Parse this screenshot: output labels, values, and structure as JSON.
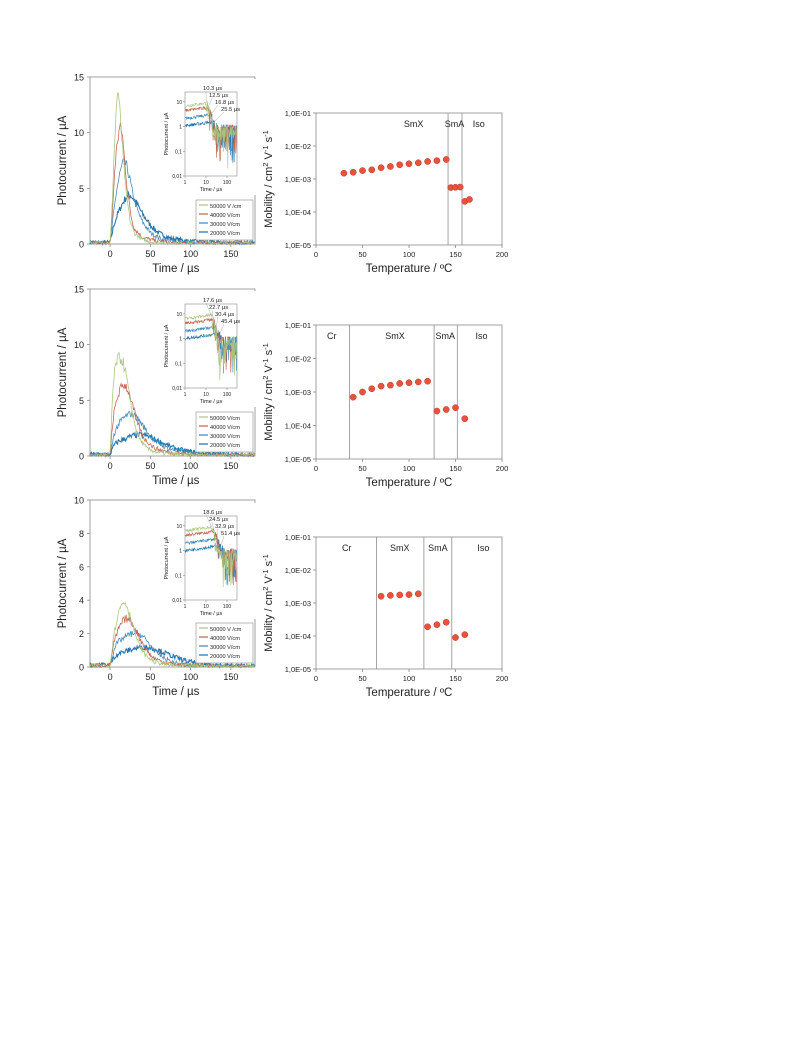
{
  "colors": {
    "s50000": "#a8c47a",
    "s40000": "#c2604a",
    "s30000": "#3c86b8",
    "s20000": "#1a6fa8",
    "marker": "#e8513c",
    "marker_edge": "#c0392b",
    "axis": "#8a8a8a",
    "phase_line": "#9a9a9a"
  },
  "chart_data": [
    {
      "id": "a-transient",
      "type": "line",
      "title": "",
      "xlabel": "Time / µs",
      "ylabel": "Photocurrent / µA",
      "xlim": [
        -25,
        180
      ],
      "ylim": [
        0,
        15
      ],
      "xticks": [
        "0",
        "50",
        "100",
        "150"
      ],
      "yticks": [
        "0",
        "5",
        "10",
        "15"
      ],
      "legend_position": "bottom-right",
      "series": [
        {
          "name": "50000 V /cm",
          "color_key": "s50000",
          "x": [
            -25,
            0,
            3,
            6,
            8,
            10,
            12,
            16,
            20,
            25,
            30,
            40,
            50,
            70,
            180
          ],
          "y": [
            0.1,
            0.1,
            4,
            10,
            12.8,
            13.8,
            12,
            8,
            4.5,
            2,
            1,
            0.4,
            0.2,
            0.1,
            0.1
          ]
        },
        {
          "name": "40000 V/cm",
          "color_key": "s40000",
          "x": [
            -25,
            0,
            3,
            6,
            9,
            12,
            15,
            18,
            22,
            26,
            30,
            40,
            55,
            80,
            180
          ],
          "y": [
            0.1,
            0.1,
            3,
            7,
            9.2,
            10.5,
            10,
            7.5,
            4.5,
            2.5,
            1.4,
            0.6,
            0.3,
            0.1,
            0.1
          ]
        },
        {
          "name": "30000 V/cm",
          "color_key": "s30000",
          "x": [
            -25,
            0,
            4,
            8,
            12,
            16,
            20,
            24,
            28,
            34,
            40,
            50,
            65,
            90,
            180
          ],
          "y": [
            0.1,
            0.1,
            2.5,
            4.8,
            6.3,
            7.3,
            7.1,
            6,
            4.5,
            3,
            2,
            1,
            0.4,
            0.15,
            0.1
          ]
        },
        {
          "name": "20000 V/cm",
          "color_key": "s20000",
          "x": [
            -25,
            0,
            5,
            10,
            15,
            20,
            25,
            30,
            35,
            40,
            50,
            60,
            75,
            100,
            130,
            180
          ],
          "y": [
            0.15,
            0.15,
            1.8,
            2.8,
            3.6,
            4.2,
            4.4,
            4,
            3.4,
            2.7,
            1.7,
            1,
            0.5,
            0.25,
            0.15,
            0.1
          ]
        }
      ],
      "inset": {
        "xlabel": "Time / µs",
        "ylabel": "Photocurrent / µA",
        "xticks": [
          "1",
          "10",
          "100"
        ],
        "yticks": [
          "0,01",
          "0,1",
          "1",
          "10"
        ],
        "xlim": [
          1,
          300
        ],
        "ylim": [
          0.01,
          25
        ],
        "annotations": [
          "10.3 µs",
          "12.5 µs",
          "16.8 µs",
          "25.5 µs"
        ],
        "transit_times": [
          10.3,
          12.5,
          16.8,
          25.5
        ]
      }
    },
    {
      "id": "a-mobility",
      "type": "scatter",
      "title": "",
      "xlabel": "Temperature / ºC",
      "ylabel_parts": [
        "Mobility / cm",
        "2",
        " V",
        "-1",
        " s",
        "-1"
      ],
      "xlim": [
        0,
        200
      ],
      "ylim": [
        1e-05,
        0.1
      ],
      "log_y": true,
      "xticks": [
        "0",
        "50",
        "100",
        "150",
        "200"
      ],
      "yticks": [
        "1,0E-05",
        "1,0E-04",
        "1,0E-03",
        "1,0E-02",
        "1,0E-01"
      ],
      "phase_boundaries": [
        142,
        157
      ],
      "phases": [
        {
          "label": "SmX",
          "x": 105
        },
        {
          "label": "SmA",
          "x": 149
        },
        {
          "label": "Iso",
          "x": 175
        }
      ],
      "points": {
        "x": [
          30,
          40,
          50,
          60,
          70,
          80,
          90,
          100,
          110,
          120,
          130,
          140,
          145,
          150,
          155,
          160,
          165
        ],
        "y": [
          0.0015,
          0.0016,
          0.0018,
          0.0019,
          0.0022,
          0.0024,
          0.0027,
          0.0029,
          0.0031,
          0.0034,
          0.0036,
          0.0039,
          0.00055,
          0.00056,
          0.00057,
          0.00021,
          0.00024
        ]
      }
    },
    {
      "id": "b-transient",
      "type": "line",
      "title": "",
      "xlabel": "Time / µs",
      "ylabel": "Photocurrent / µA",
      "xlim": [
        -25,
        180
      ],
      "ylim": [
        0,
        15
      ],
      "xticks": [
        "0",
        "50",
        "100",
        "150"
      ],
      "yticks": [
        "0",
        "5",
        "10",
        "15"
      ],
      "legend_position": "bottom-right",
      "series": [
        {
          "name": "50000 V/cm",
          "color_key": "s50000",
          "x": [
            -25,
            0,
            3,
            6,
            9,
            12,
            16,
            20,
            25,
            30,
            36,
            45,
            60,
            90,
            180
          ],
          "y": [
            0.1,
            0.1,
            5.5,
            7.8,
            8.7,
            8.8,
            8.5,
            7.2,
            5,
            3,
            1.6,
            0.7,
            0.3,
            0.1,
            0.1
          ]
        },
        {
          "name": "40000 V/cm",
          "color_key": "s40000",
          "x": [
            -25,
            0,
            4,
            8,
            12,
            16,
            20,
            24,
            30,
            36,
            42,
            55,
            75,
            110,
            180
          ],
          "y": [
            0.1,
            0.1,
            3.5,
            5,
            5.9,
            6.4,
            6.3,
            5.5,
            4,
            2.6,
            1.6,
            0.7,
            0.3,
            0.1,
            0.1
          ]
        },
        {
          "name": "30000 V/cm",
          "color_key": "s30000",
          "x": [
            -25,
            0,
            5,
            10,
            15,
            20,
            25,
            30,
            36,
            42,
            50,
            60,
            75,
            100,
            130,
            180
          ],
          "y": [
            0.1,
            0.1,
            2,
            2.8,
            3.3,
            3.6,
            3.8,
            3.7,
            3.2,
            2.6,
            1.8,
            1.1,
            0.6,
            0.25,
            0.15,
            0.1
          ]
        },
        {
          "name": "20000 V/cm",
          "color_key": "s20000",
          "x": [
            -25,
            0,
            5,
            10,
            20,
            30,
            40,
            50,
            60,
            70,
            80,
            95,
            115,
            140,
            180
          ],
          "y": [
            0.15,
            0.15,
            1,
            1.3,
            1.6,
            1.85,
            1.9,
            1.7,
            1.35,
            1,
            0.7,
            0.45,
            0.25,
            0.15,
            0.1
          ]
        }
      ],
      "inset": {
        "xlabel": "Time / µs",
        "ylabel": "Photocurrent / µA",
        "xticks": [
          "1",
          "10",
          "100"
        ],
        "yticks": [
          "0,01",
          "0,1",
          "1",
          "10"
        ],
        "xlim": [
          1,
          300
        ],
        "ylim": [
          0.01,
          25
        ],
        "annotations": [
          "17.6 µs",
          "22.7 µs",
          "30.4 µs",
          "45.4 µs"
        ],
        "transit_times": [
          17.6,
          22.7,
          30.4,
          45.4
        ]
      }
    },
    {
      "id": "b-mobility",
      "type": "scatter",
      "title": "",
      "xlabel": "Temperature / ºC",
      "ylabel_parts": [
        "Mobility / cm",
        "2",
        " V",
        "-1",
        " s",
        "-1"
      ],
      "xlim": [
        0,
        200
      ],
      "ylim": [
        1e-05,
        0.1
      ],
      "log_y": true,
      "xticks": [
        "0",
        "50",
        "100",
        "150",
        "200"
      ],
      "yticks": [
        "1,0E-05",
        "1,0E-04",
        "1,0E-03",
        "1,0E-02",
        "1,0E-01"
      ],
      "phase_boundaries": [
        36,
        127,
        152
      ],
      "phases": [
        {
          "label": "Cr",
          "x": 17
        },
        {
          "label": "SmX",
          "x": 85
        },
        {
          "label": "SmA",
          "x": 139
        },
        {
          "label": "Iso",
          "x": 178
        }
      ],
      "points": {
        "x": [
          40,
          50,
          60,
          70,
          80,
          90,
          100,
          110,
          120,
          130,
          140,
          150,
          160
        ],
        "y": [
          0.0007,
          0.001,
          0.00125,
          0.0015,
          0.0016,
          0.0018,
          0.0019,
          0.002,
          0.0021,
          0.00027,
          0.0003,
          0.00034,
          0.00016
        ]
      }
    },
    {
      "id": "c-transient",
      "type": "line",
      "title": "",
      "xlabel": "Time / µs",
      "ylabel": "Photocurrent / µA",
      "xlim": [
        -25,
        180
      ],
      "ylim": [
        0,
        10
      ],
      "xticks": [
        "0",
        "50",
        "100",
        "150"
      ],
      "yticks": [
        "0",
        "2",
        "4",
        "6",
        "8",
        "10"
      ],
      "legend_position": "bottom-right",
      "series": [
        {
          "name": "50000 V /cm",
          "color_key": "s50000",
          "x": [
            -25,
            0,
            4,
            8,
            12,
            16,
            20,
            24,
            30,
            36,
            44,
            55,
            75,
            110,
            180
          ],
          "y": [
            0.1,
            0.1,
            1.8,
            2.8,
            3.5,
            3.9,
            3.8,
            3.2,
            2.2,
            1.3,
            0.7,
            0.3,
            0.1,
            0.05,
            0.05
          ]
        },
        {
          "name": "40000 V/cm",
          "color_key": "s40000",
          "x": [
            -25,
            0,
            5,
            10,
            15,
            20,
            25,
            30,
            36,
            44,
            52,
            65,
            85,
            120,
            180
          ],
          "y": [
            0.1,
            0.1,
            1.5,
            2.2,
            2.7,
            2.9,
            2.8,
            2.4,
            1.8,
            1.1,
            0.6,
            0.3,
            0.12,
            0.05,
            0.05
          ]
        },
        {
          "name": "30000 V/cm",
          "color_key": "s30000",
          "x": [
            -25,
            0,
            5,
            10,
            20,
            30,
            36,
            42,
            50,
            58,
            68,
            80,
            100,
            130,
            180
          ],
          "y": [
            0.1,
            0.1,
            1.1,
            1.5,
            1.85,
            2.05,
            2,
            1.75,
            1.3,
            0.85,
            0.5,
            0.25,
            0.1,
            0.05,
            0.05
          ]
        },
        {
          "name": "20000 V/cm",
          "color_key": "s20000",
          "x": [
            -25,
            0,
            5,
            10,
            20,
            30,
            40,
            50,
            60,
            70,
            80,
            95,
            115,
            140,
            180
          ],
          "y": [
            0.15,
            0.15,
            0.6,
            0.8,
            0.95,
            1.1,
            1.2,
            1.15,
            1,
            0.8,
            0.6,
            0.35,
            0.2,
            0.1,
            0.05
          ]
        }
      ],
      "inset": {
        "xlabel": "Time / µs",
        "ylabel": "Photocurrent / µA",
        "xticks": [
          "1",
          "10",
          "100"
        ],
        "yticks": [
          "0,01",
          "0,1",
          "1",
          "10"
        ],
        "xlim": [
          1,
          300
        ],
        "ylim": [
          0.01,
          25
        ],
        "annotations": [
          "18.6 µs",
          "24.5 µs",
          "32.9 µs",
          "51.4 µs"
        ],
        "transit_times": [
          18.6,
          24.5,
          32.9,
          51.4
        ]
      }
    },
    {
      "id": "c-mobility",
      "type": "scatter",
      "title": "",
      "xlabel": "Temperature / ºC",
      "ylabel_parts": [
        "Mobility / cm",
        "2",
        " V",
        "-1",
        " s",
        "-1"
      ],
      "xlim": [
        0,
        200
      ],
      "ylim": [
        1e-05,
        0.1
      ],
      "log_y": true,
      "xticks": [
        "0",
        "50",
        "100",
        "150",
        "200"
      ],
      "yticks": [
        "1,0E-05",
        "1,0E-04",
        "1,0E-03",
        "1,0E-02",
        "1,0E-01"
      ],
      "phase_boundaries": [
        65,
        116,
        146
      ],
      "phases": [
        {
          "label": "Cr",
          "x": 33
        },
        {
          "label": "SmX",
          "x": 90
        },
        {
          "label": "SmA",
          "x": 131
        },
        {
          "label": "Iso",
          "x": 180
        }
      ],
      "points": {
        "x": [
          70,
          80,
          90,
          100,
          110,
          120,
          130,
          140,
          150,
          160
        ],
        "y": [
          0.0016,
          0.0017,
          0.00175,
          0.0018,
          0.0019,
          0.00019,
          0.00022,
          0.00026,
          9e-05,
          0.00011
        ]
      }
    }
  ]
}
